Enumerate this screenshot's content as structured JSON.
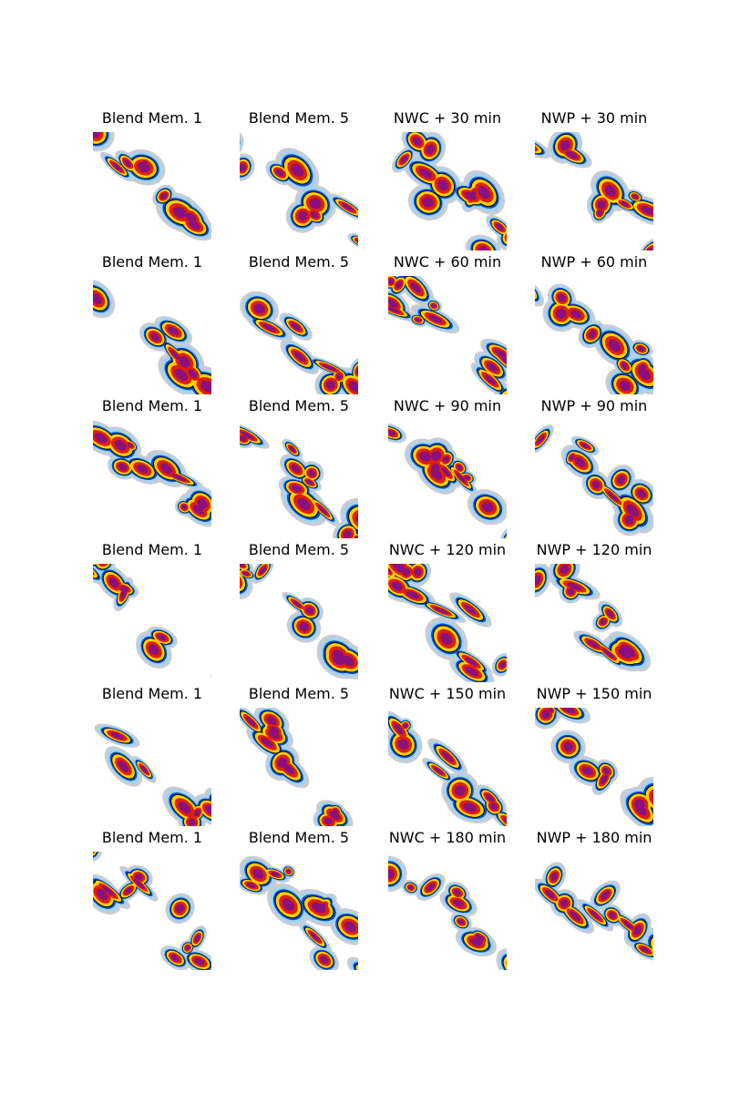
{
  "rows": [
    [
      "Blend Mem. 1",
      "Blend Mem. 5",
      "NWC + 30 min",
      "NWP + 30 min"
    ],
    [
      "Blend Mem. 1",
      "Blend Mem. 5",
      "NWC + 60 min",
      "NWP + 60 min"
    ],
    [
      "Blend Mem. 1",
      "Blend Mem. 5",
      "NWC + 90 min",
      "NWP + 90 min"
    ],
    [
      "Blend Mem. 1",
      "Blend Mem. 5",
      "NWC + 120 min",
      "NWP + 120 min"
    ],
    [
      "Blend Mem. 1",
      "Blend Mem. 5",
      "NWC + 150 min",
      "NWP + 150 min"
    ],
    [
      "Blend Mem. 1",
      "Blend Mem. 5",
      "NWC + 180 min",
      "NWP + 180 min"
    ]
  ]
}
